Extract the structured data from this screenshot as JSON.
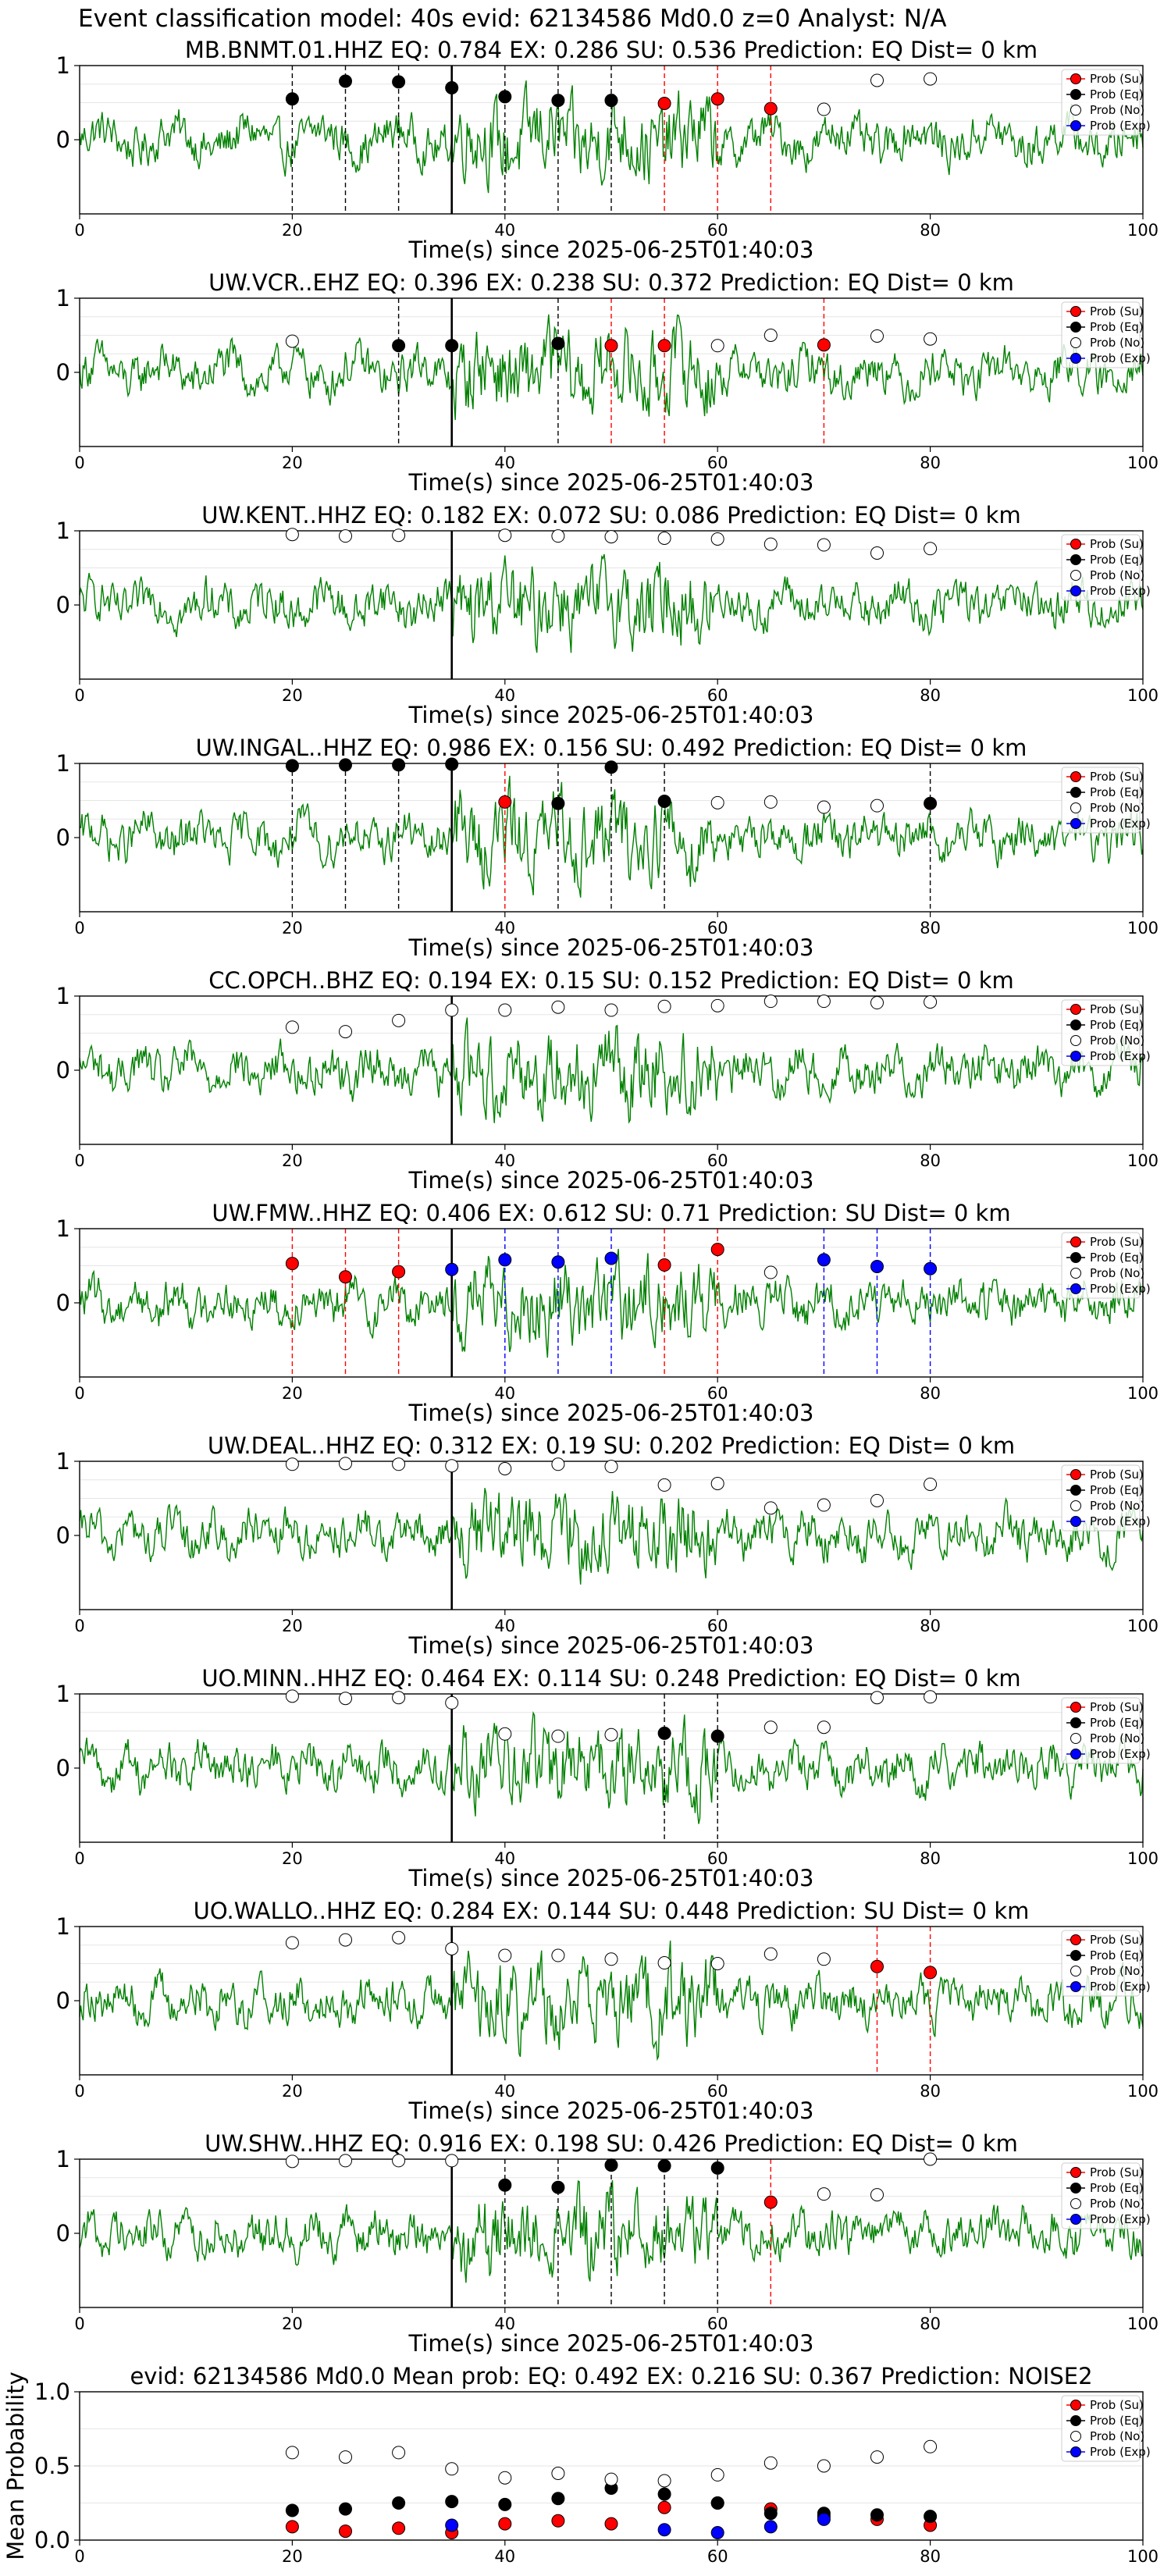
{
  "figure": {
    "title": "Event classification model: 40s evid: 62134586 Md0.0 z=0 Analyst: N/A",
    "colors": {
      "waveform": "#008000",
      "su": "#ff0000",
      "eq": "#000000",
      "no": "#ffffff",
      "exp": "#0000ff",
      "marker_edge": "#000000"
    }
  },
  "chart_data": [
    {
      "type": "line",
      "title": "MB.BNMT.01.HHZ   EQ: 0.784  EX: 0.286  SU: 0.536   Prediction: EQ    Dist= 0 km",
      "xlabel": "Time(s) since 2025-06-25T01:40:03",
      "xlim": [
        0,
        100
      ],
      "ylim": [
        -1,
        1
      ],
      "xticks": [
        "0",
        "20",
        "40",
        "60",
        "80",
        "100"
      ],
      "yticks": [
        "0",
        "1"
      ],
      "legend_labels": [
        "Prob (Su)",
        "Prob (Eq)",
        "Prob (No)",
        "Prob (Exp)"
      ],
      "legend_position": "top-right",
      "onset_s": 35,
      "series": [
        {
          "name": "Prob (Eq)",
          "x": [
            20,
            25,
            30,
            35,
            40,
            45,
            50
          ],
          "y": [
            0.55,
            0.79,
            0.78,
            0.7,
            0.58,
            0.53,
            0.53
          ]
        },
        {
          "name": "Prob (Su)",
          "x": [
            55,
            60,
            65
          ],
          "y": [
            0.49,
            0.55,
            0.42
          ]
        },
        {
          "name": "Prob (No)",
          "x": [
            70,
            75,
            80
          ],
          "y": [
            0.41,
            0.8,
            0.82
          ]
        },
        {
          "name": "Prob (Exp)",
          "x": [],
          "y": []
        }
      ]
    },
    {
      "type": "line",
      "title": "UW.VCR..EHZ   EQ: 0.396  EX: 0.238  SU: 0.372   Prediction: EQ    Dist= 0 km",
      "xlabel": "Time(s) since 2025-06-25T01:40:03",
      "xlim": [
        0,
        100
      ],
      "ylim": [
        -1,
        1
      ],
      "xticks": [
        "0",
        "20",
        "40",
        "60",
        "80",
        "100"
      ],
      "yticks": [
        "0",
        "1"
      ],
      "legend_labels": [
        "Prob (Su)",
        "Prob (Eq)",
        "Prob (No)",
        "Prob (Exp)"
      ],
      "legend_position": "top-right",
      "onset_s": 35,
      "series": [
        {
          "name": "Prob (Eq)",
          "x": [
            30,
            35,
            45
          ],
          "y": [
            0.36,
            0.36,
            0.39
          ]
        },
        {
          "name": "Prob (Su)",
          "x": [
            50,
            55,
            70
          ],
          "y": [
            0.36,
            0.36,
            0.37
          ]
        },
        {
          "name": "Prob (No)",
          "x": [
            20,
            60,
            65,
            75,
            80
          ],
          "y": [
            0.42,
            0.36,
            0.5,
            0.49,
            0.45
          ]
        },
        {
          "name": "Prob (Exp)",
          "x": [],
          "y": []
        }
      ]
    },
    {
      "type": "line",
      "title": "UW.KENT..HHZ   EQ: 0.182  EX: 0.072  SU: 0.086   Prediction: EQ    Dist= 0 km",
      "xlabel": "Time(s) since 2025-06-25T01:40:03",
      "xlim": [
        0,
        100
      ],
      "ylim": [
        -1,
        1
      ],
      "xticks": [
        "0",
        "20",
        "40",
        "60",
        "80",
        "100"
      ],
      "yticks": [
        "0",
        "1"
      ],
      "legend_labels": [
        "Prob (Su)",
        "Prob (Eq)",
        "Prob (No)",
        "Prob (Exp)"
      ],
      "legend_position": "top-right",
      "onset_s": 35,
      "series": [
        {
          "name": "Prob (Eq)",
          "x": [],
          "y": []
        },
        {
          "name": "Prob (Su)",
          "x": [],
          "y": []
        },
        {
          "name": "Prob (No)",
          "x": [
            20,
            25,
            30,
            40,
            45,
            50,
            55,
            60,
            65,
            70,
            75,
            80
          ],
          "y": [
            0.95,
            0.93,
            0.94,
            0.94,
            0.93,
            0.92,
            0.9,
            0.89,
            0.82,
            0.81,
            0.7,
            0.76
          ]
        },
        {
          "name": "Prob (Exp)",
          "x": [],
          "y": []
        }
      ]
    },
    {
      "type": "line",
      "title": "UW.INGAL..HHZ   EQ: 0.986  EX: 0.156  SU: 0.492   Prediction: EQ    Dist= 0 km",
      "xlabel": "Time(s) since 2025-06-25T01:40:03",
      "xlim": [
        0,
        100
      ],
      "ylim": [
        -1,
        1
      ],
      "xticks": [
        "0",
        "20",
        "40",
        "60",
        "80",
        "100"
      ],
      "yticks": [
        "0",
        "1"
      ],
      "legend_labels": [
        "Prob (Su)",
        "Prob (Eq)",
        "Prob (No)",
        "Prob (Exp)"
      ],
      "legend_position": "top-right",
      "onset_s": 35,
      "series": [
        {
          "name": "Prob (Eq)",
          "x": [
            20,
            25,
            30,
            35,
            45,
            50,
            55,
            80
          ],
          "y": [
            0.97,
            0.98,
            0.98,
            0.99,
            0.46,
            0.95,
            0.49,
            0.46
          ]
        },
        {
          "name": "Prob (Su)",
          "x": [
            40
          ],
          "y": [
            0.48
          ]
        },
        {
          "name": "Prob (No)",
          "x": [
            60,
            65,
            70,
            75
          ],
          "y": [
            0.47,
            0.48,
            0.41,
            0.43
          ]
        },
        {
          "name": "Prob (Exp)",
          "x": [],
          "y": []
        }
      ]
    },
    {
      "type": "line",
      "title": "CC.OPCH..BHZ   EQ: 0.194  EX: 0.15  SU: 0.152   Prediction: EQ    Dist= 0 km",
      "xlabel": "Time(s) since 2025-06-25T01:40:03",
      "xlim": [
        0,
        100
      ],
      "ylim": [
        -1,
        1
      ],
      "xticks": [
        "0",
        "20",
        "40",
        "60",
        "80",
        "100"
      ],
      "yticks": [
        "0",
        "1"
      ],
      "legend_labels": [
        "Prob (Su)",
        "Prob (Eq)",
        "Prob (No)",
        "Prob (Exp)"
      ],
      "legend_position": "top-right",
      "onset_s": 35,
      "series": [
        {
          "name": "Prob (Eq)",
          "x": [],
          "y": []
        },
        {
          "name": "Prob (Su)",
          "x": [],
          "y": []
        },
        {
          "name": "Prob (No)",
          "x": [
            20,
            25,
            30,
            35,
            40,
            45,
            50,
            55,
            60,
            65,
            70,
            75,
            80
          ],
          "y": [
            0.58,
            0.52,
            0.67,
            0.81,
            0.81,
            0.85,
            0.81,
            0.86,
            0.87,
            0.93,
            0.93,
            0.91,
            0.92
          ]
        },
        {
          "name": "Prob (Exp)",
          "x": [],
          "y": []
        }
      ]
    },
    {
      "type": "line",
      "title": "UW.FMW..HHZ   EQ: 0.406  EX: 0.612  SU: 0.71   Prediction: SU    Dist= 0 km",
      "xlabel": "Time(s) since 2025-06-25T01:40:03",
      "xlim": [
        0,
        100
      ],
      "ylim": [
        -1,
        1
      ],
      "xticks": [
        "0",
        "20",
        "40",
        "60",
        "80",
        "100"
      ],
      "yticks": [
        "0",
        "1"
      ],
      "legend_labels": [
        "Prob (Su)",
        "Prob (Eq)",
        "Prob (No)",
        "Prob (Exp)"
      ],
      "legend_position": "top-right",
      "onset_s": 35,
      "series": [
        {
          "name": "Prob (Eq)",
          "x": [],
          "y": []
        },
        {
          "name": "Prob (Su)",
          "x": [
            20,
            25,
            30,
            55,
            60
          ],
          "y": [
            0.53,
            0.35,
            0.42,
            0.51,
            0.72
          ]
        },
        {
          "name": "Prob (No)",
          "x": [
            65
          ],
          "y": [
            0.41
          ]
        },
        {
          "name": "Prob (Exp)",
          "x": [
            35,
            40,
            45,
            50,
            70,
            75,
            80
          ],
          "y": [
            0.45,
            0.58,
            0.55,
            0.6,
            0.58,
            0.49,
            0.46
          ]
        }
      ]
    },
    {
      "type": "line",
      "title": "UW.DEAL..HHZ   EQ: 0.312  EX: 0.19  SU: 0.202   Prediction: EQ    Dist= 0 km",
      "xlabel": "Time(s) since 2025-06-25T01:40:03",
      "xlim": [
        0,
        100
      ],
      "ylim": [
        -1,
        1
      ],
      "xticks": [
        "0",
        "20",
        "40",
        "60",
        "80",
        "100"
      ],
      "yticks": [
        "0",
        "1"
      ],
      "legend_labels": [
        "Prob (Su)",
        "Prob (Eq)",
        "Prob (No)",
        "Prob (Exp)"
      ],
      "legend_position": "top-right",
      "onset_s": 35,
      "series": [
        {
          "name": "Prob (Eq)",
          "x": [],
          "y": []
        },
        {
          "name": "Prob (Su)",
          "x": [],
          "y": []
        },
        {
          "name": "Prob (No)",
          "x": [
            20,
            25,
            30,
            35,
            40,
            45,
            50,
            55,
            60,
            65,
            70,
            75,
            80
          ],
          "y": [
            0.96,
            0.97,
            0.96,
            0.94,
            0.9,
            0.96,
            0.93,
            0.68,
            0.7,
            0.37,
            0.41,
            0.47,
            0.69
          ]
        },
        {
          "name": "Prob (Exp)",
          "x": [],
          "y": []
        }
      ]
    },
    {
      "type": "line",
      "title": "UO.MINN..HHZ   EQ: 0.464  EX: 0.114  SU: 0.248   Prediction: EQ    Dist= 0 km",
      "xlabel": "Time(s) since 2025-06-25T01:40:03",
      "xlim": [
        0,
        100
      ],
      "ylim": [
        -1,
        1
      ],
      "xticks": [
        "0",
        "20",
        "40",
        "60",
        "80",
        "100"
      ],
      "yticks": [
        "0",
        "1"
      ],
      "legend_labels": [
        "Prob (Su)",
        "Prob (Eq)",
        "Prob (No)",
        "Prob (Exp)"
      ],
      "legend_position": "top-right",
      "onset_s": 35,
      "series": [
        {
          "name": "Prob (Eq)",
          "x": [
            55,
            60
          ],
          "y": [
            0.47,
            0.43
          ]
        },
        {
          "name": "Prob (Su)",
          "x": [],
          "y": []
        },
        {
          "name": "Prob (No)",
          "x": [
            20,
            25,
            30,
            35,
            40,
            45,
            50,
            65,
            70,
            75,
            80
          ],
          "y": [
            0.97,
            0.94,
            0.95,
            0.88,
            0.46,
            0.43,
            0.45,
            0.55,
            0.55,
            0.95,
            0.96
          ]
        },
        {
          "name": "Prob (Exp)",
          "x": [],
          "y": []
        }
      ]
    },
    {
      "type": "line",
      "title": "UO.WALLO..HHZ   EQ: 0.284  EX: 0.144  SU: 0.448   Prediction: SU    Dist= 0 km",
      "xlabel": "Time(s) since 2025-06-25T01:40:03",
      "xlim": [
        0,
        100
      ],
      "ylim": [
        -1,
        1
      ],
      "xticks": [
        "0",
        "20",
        "40",
        "60",
        "80",
        "100"
      ],
      "yticks": [
        "0",
        "1"
      ],
      "legend_labels": [
        "Prob (Su)",
        "Prob (Eq)",
        "Prob (No)",
        "Prob (Exp)"
      ],
      "legend_position": "top-right",
      "onset_s": 35,
      "series": [
        {
          "name": "Prob (Eq)",
          "x": [],
          "y": []
        },
        {
          "name": "Prob (Su)",
          "x": [
            75,
            80
          ],
          "y": [
            0.46,
            0.38
          ]
        },
        {
          "name": "Prob (No)",
          "x": [
            20,
            25,
            30,
            35,
            40,
            45,
            50,
            55,
            60,
            65,
            70
          ],
          "y": [
            0.78,
            0.82,
            0.85,
            0.7,
            0.61,
            0.61,
            0.56,
            0.51,
            0.5,
            0.63,
            0.56
          ]
        },
        {
          "name": "Prob (Exp)",
          "x": [],
          "y": []
        }
      ]
    },
    {
      "type": "line",
      "title": "UW.SHW..HHZ   EQ: 0.916  EX: 0.198  SU: 0.426   Prediction: EQ    Dist= 0 km",
      "xlabel": "Time(s) since 2025-06-25T01:40:03",
      "xlim": [
        0,
        100
      ],
      "ylim": [
        -1,
        1
      ],
      "xticks": [
        "0",
        "20",
        "40",
        "60",
        "80",
        "100"
      ],
      "yticks": [
        "0",
        "1"
      ],
      "legend_labels": [
        "Prob (Su)",
        "Prob (Eq)",
        "Prob (No)",
        "Prob (Exp)"
      ],
      "legend_position": "top-right",
      "onset_s": 35,
      "series": [
        {
          "name": "Prob (Eq)",
          "x": [
            40,
            45,
            50,
            55,
            60
          ],
          "y": [
            0.65,
            0.62,
            0.92,
            0.91,
            0.88
          ]
        },
        {
          "name": "Prob (Su)",
          "x": [
            65
          ],
          "y": [
            0.42
          ]
        },
        {
          "name": "Prob (No)",
          "x": [
            20,
            25,
            30,
            35,
            70,
            75,
            80
          ],
          "y": [
            0.97,
            0.98,
            0.98,
            0.98,
            0.53,
            0.52,
            1.0
          ]
        },
        {
          "name": "Prob (Exp)",
          "x": [],
          "y": []
        }
      ]
    },
    {
      "type": "scatter",
      "title": "evid: 62134586  Md0.0   Mean prob:   EQ: 0.492  EX: 0.216  SU: 0.367   Prediction: NOISE2",
      "xlabel": "",
      "ylabel": "Mean Probability",
      "xlim": [
        0,
        100
      ],
      "ylim": [
        0,
        1
      ],
      "xticks": [
        "0",
        "20",
        "40",
        "60",
        "80",
        "100"
      ],
      "yticks": [
        "0.0",
        "0.5",
        "1.0"
      ],
      "legend_labels": [
        "Prob (Su)",
        "Prob (Eq)",
        "Prob (No)",
        "Prob (Exp)"
      ],
      "legend_position": "top-right",
      "series": [
        {
          "name": "Prob (Su)",
          "x": [
            20,
            25,
            30,
            35,
            40,
            45,
            50,
            55,
            60,
            65,
            70,
            75,
            80
          ],
          "y": [
            0.09,
            0.06,
            0.08,
            0.05,
            0.11,
            0.13,
            0.11,
            0.22,
            0.25,
            0.21,
            0.16,
            0.14,
            0.1
          ]
        },
        {
          "name": "Prob (Eq)",
          "x": [
            20,
            25,
            30,
            35,
            40,
            45,
            50,
            55,
            60,
            65,
            70,
            75,
            80
          ],
          "y": [
            0.2,
            0.21,
            0.25,
            0.26,
            0.24,
            0.28,
            0.35,
            0.31,
            0.25,
            0.18,
            0.18,
            0.17,
            0.16
          ]
        },
        {
          "name": "Prob (No)",
          "x": [
            20,
            25,
            30,
            35,
            40,
            45,
            50,
            55,
            60,
            65,
            70,
            75,
            80
          ],
          "y": [
            0.59,
            0.56,
            0.59,
            0.48,
            0.42,
            0.45,
            0.41,
            0.4,
            0.44,
            0.52,
            0.5,
            0.56,
            0.63
          ]
        },
        {
          "name": "Prob (Exp)",
          "x": [
            35,
            55,
            60,
            65,
            70
          ],
          "y": [
            0.1,
            0.07,
            0.05,
            0.09,
            0.14
          ]
        }
      ]
    }
  ]
}
